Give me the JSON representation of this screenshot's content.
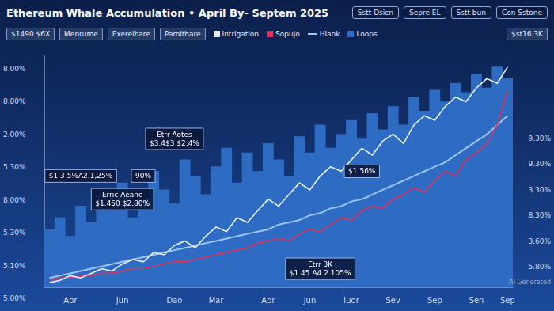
{
  "header": {
    "title": "Ethereum Whale Accumulation • April By- Septem 2025",
    "buttons": [
      "Sstt Dsicn",
      "Sepre EL",
      "Sstt bun",
      "Con Sstone"
    ],
    "toolbar": [
      "$1490 $6X",
      "Menrume",
      "Exerelhare",
      "Pamithare"
    ],
    "badge": "$st16 3K"
  },
  "left_labels": [
    "8.00%",
    "8.80%",
    "2.00%",
    "5.30%",
    "8.00%",
    "5.30%",
    "5.10%",
    "5.00%"
  ],
  "right_labels": [
    "9.30%",
    "9.30%",
    "3.30%",
    "8.30%",
    "3.60%",
    "5.80%"
  ],
  "watermark": "AI Generated",
  "chart_data": {
    "type": "line",
    "categories": [
      null,
      null,
      "Apr",
      null,
      null,
      null,
      null,
      "Jun",
      null,
      null,
      null,
      null,
      "Dao",
      null,
      null,
      null,
      "Mar",
      null,
      null,
      null,
      null,
      "Apr",
      null,
      null,
      null,
      "Jun",
      null,
      null,
      null,
      "Iuor",
      null,
      null,
      null,
      "Sev",
      null,
      null,
      null,
      "Sep",
      null,
      null,
      null,
      "Sen",
      null,
      null,
      "Sep"
    ],
    "series": [
      {
        "name": "Intrigation",
        "type": "line",
        "color": "#e8f2ff",
        "line_style": "solid",
        "values": [
          2,
          3,
          5,
          4,
          6,
          8,
          7,
          10,
          12,
          11,
          15,
          14,
          18,
          20,
          17,
          22,
          26,
          24,
          30,
          28,
          33,
          38,
          35,
          40,
          45,
          42,
          48,
          52,
          50,
          55,
          60,
          57,
          63,
          66,
          62,
          70,
          74,
          72,
          78,
          82,
          80,
          86,
          90,
          88,
          95
        ]
      },
      {
        "name": "Sopujo",
        "type": "line",
        "color": "#e0315a",
        "line_style": "solid",
        "values": [
          3,
          4,
          4,
          5,
          5,
          6,
          6,
          7,
          8,
          8,
          9,
          10,
          11,
          11,
          12,
          13,
          14,
          15,
          16,
          17,
          19,
          20,
          21,
          20,
          23,
          25,
          24,
          27,
          30,
          29,
          33,
          35,
          34,
          38,
          40,
          43,
          41,
          46,
          50,
          48,
          55,
          58,
          62,
          70,
          85
        ]
      },
      {
        "name": "Hlank",
        "type": "line",
        "color": "#9cc3f2",
        "line_style": "smooth",
        "values": [
          4,
          5,
          6,
          7,
          8,
          9,
          10,
          11,
          12,
          13,
          14,
          15,
          16,
          17,
          18,
          19,
          20,
          21,
          22,
          23,
          24,
          25,
          27,
          28,
          29,
          31,
          32,
          34,
          35,
          37,
          38,
          40,
          42,
          44,
          46,
          48,
          50,
          52,
          54,
          57,
          60,
          63,
          66,
          70,
          74
        ]
      },
      {
        "name": "Loops",
        "type": "bar",
        "color": "#2e6cc4",
        "values": [
          25,
          30,
          22,
          35,
          28,
          40,
          33,
          45,
          30,
          38,
          50,
          42,
          36,
          55,
          48,
          40,
          52,
          60,
          45,
          58,
          50,
          62,
          55,
          48,
          65,
          58,
          70,
          60,
          66,
          72,
          64,
          75,
          68,
          78,
          70,
          82,
          76,
          85,
          80,
          88,
          84,
          92,
          86,
          95,
          90
        ]
      }
    ],
    "ylim": [
      0,
      100
    ],
    "grid": false,
    "legend": "top",
    "tick_labels": "x",
    "annotations": [
      {
        "lines": [
          "Etrr Aotes",
          "$3.4$3 $2.4%"
        ],
        "x": 12,
        "y": 64
      },
      {
        "lines": [
          "$1 3 5%A2.1,25%"
        ],
        "x": 3,
        "y": 48
      },
      {
        "lines": [
          "90%"
        ],
        "x": 9,
        "y": 48
      },
      {
        "lines": [
          "Erric Aeane",
          "$1.450 $2.80%"
        ],
        "x": 7,
        "y": 38
      },
      {
        "lines": [
          "$1 56%"
        ],
        "x": 30,
        "y": 50
      },
      {
        "lines": [
          "Etrr 3K",
          "$1.45 A4 2.105%"
        ],
        "x": 26,
        "y": 8
      }
    ]
  }
}
